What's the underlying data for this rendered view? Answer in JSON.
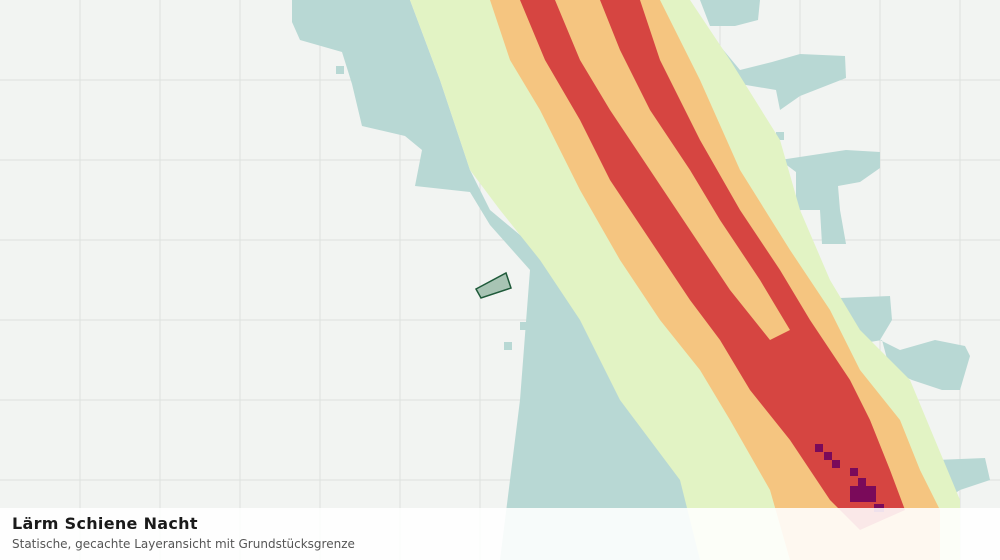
{
  "title": "Lärm Schiene Nacht",
  "subtitle": "Statische, gecachte Layeransicht mit Grundstücksgrenze"
}
